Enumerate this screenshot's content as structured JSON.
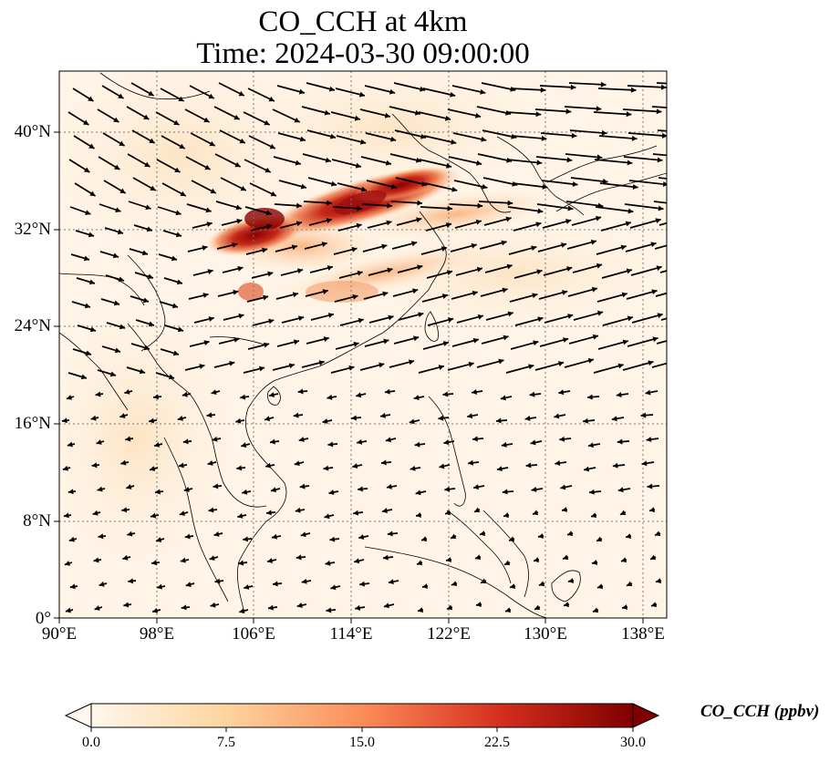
{
  "title": {
    "line1": "CO_CCH at 4km",
    "line2": "Time: 2024-03-30 09:00:00"
  },
  "map": {
    "variable": "CO_CCH",
    "level": "4km",
    "lon_range": [
      90,
      140
    ],
    "lat_range": [
      0,
      45
    ],
    "x_ticks": [
      "90°E",
      "98°E",
      "106°E",
      "114°E",
      "122°E",
      "130°E",
      "138°E"
    ],
    "y_ticks": [
      "0°",
      "8°N",
      "16°N",
      "24°N",
      "32°N",
      "40°N"
    ],
    "gridlines": "dotted",
    "wind_vectors": "shown",
    "plume": {
      "description_region": "central-east China to Yellow Sea",
      "max_value": 30.0
    }
  },
  "colorbar": {
    "label": "CO_CCH (ppbv)",
    "ticks": [
      "0.0",
      "7.5",
      "15.0",
      "22.5",
      "30.0"
    ],
    "min": 0.0,
    "max": 30.0,
    "extend": "both",
    "colormap": "OrRd",
    "colors": [
      "#fff7ec",
      "#fdd49e",
      "#fc8d59",
      "#d7301f",
      "#7f0000"
    ]
  }
}
